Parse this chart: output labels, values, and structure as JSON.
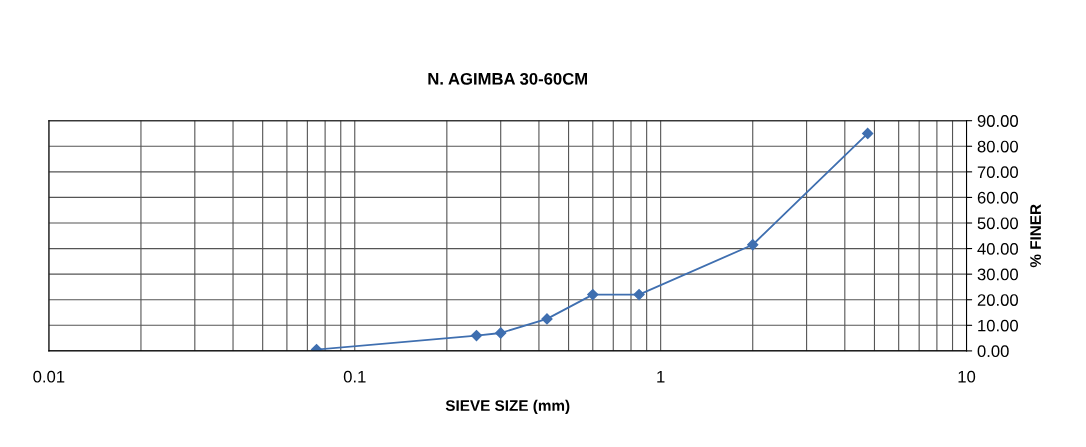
{
  "chart_data": {
    "type": "line",
    "title": "N. AGIMBA 30-60CM",
    "xlabel": "SIEVE SIZE (mm)",
    "ylabel": "% FINER",
    "x": [
      0.075,
      0.25,
      0.3,
      0.425,
      0.6,
      0.85,
      2.0,
      4.75
    ],
    "series": [
      {
        "color": "#3f6fb0",
        "values": [
          0.5,
          6,
          7,
          12.5,
          22,
          22,
          41.5,
          85
        ]
      }
    ],
    "log": "x",
    "xlim": [
      0.01,
      10
    ],
    "xticks": [
      0.01,
      0.1,
      1,
      10
    ],
    "ylim": [
      0,
      90
    ],
    "yticks": [
      {
        "value": 0,
        "label": "0.00"
      },
      {
        "value": 10,
        "label": "10.00"
      },
      {
        "value": 20,
        "label": "20.00"
      },
      {
        "value": 30,
        "label": "30.00"
      },
      {
        "value": 40,
        "label": "40.00"
      },
      {
        "value": 50,
        "label": "50.00"
      },
      {
        "value": 60,
        "label": "60.00"
      },
      {
        "value": 70,
        "label": "70.00"
      },
      {
        "value": 80,
        "label": "80.00"
      },
      {
        "value": 90,
        "label": "90.00"
      }
    ],
    "grid": true,
    "marker": "diamond",
    "line_style": "solid",
    "legend": false
  }
}
